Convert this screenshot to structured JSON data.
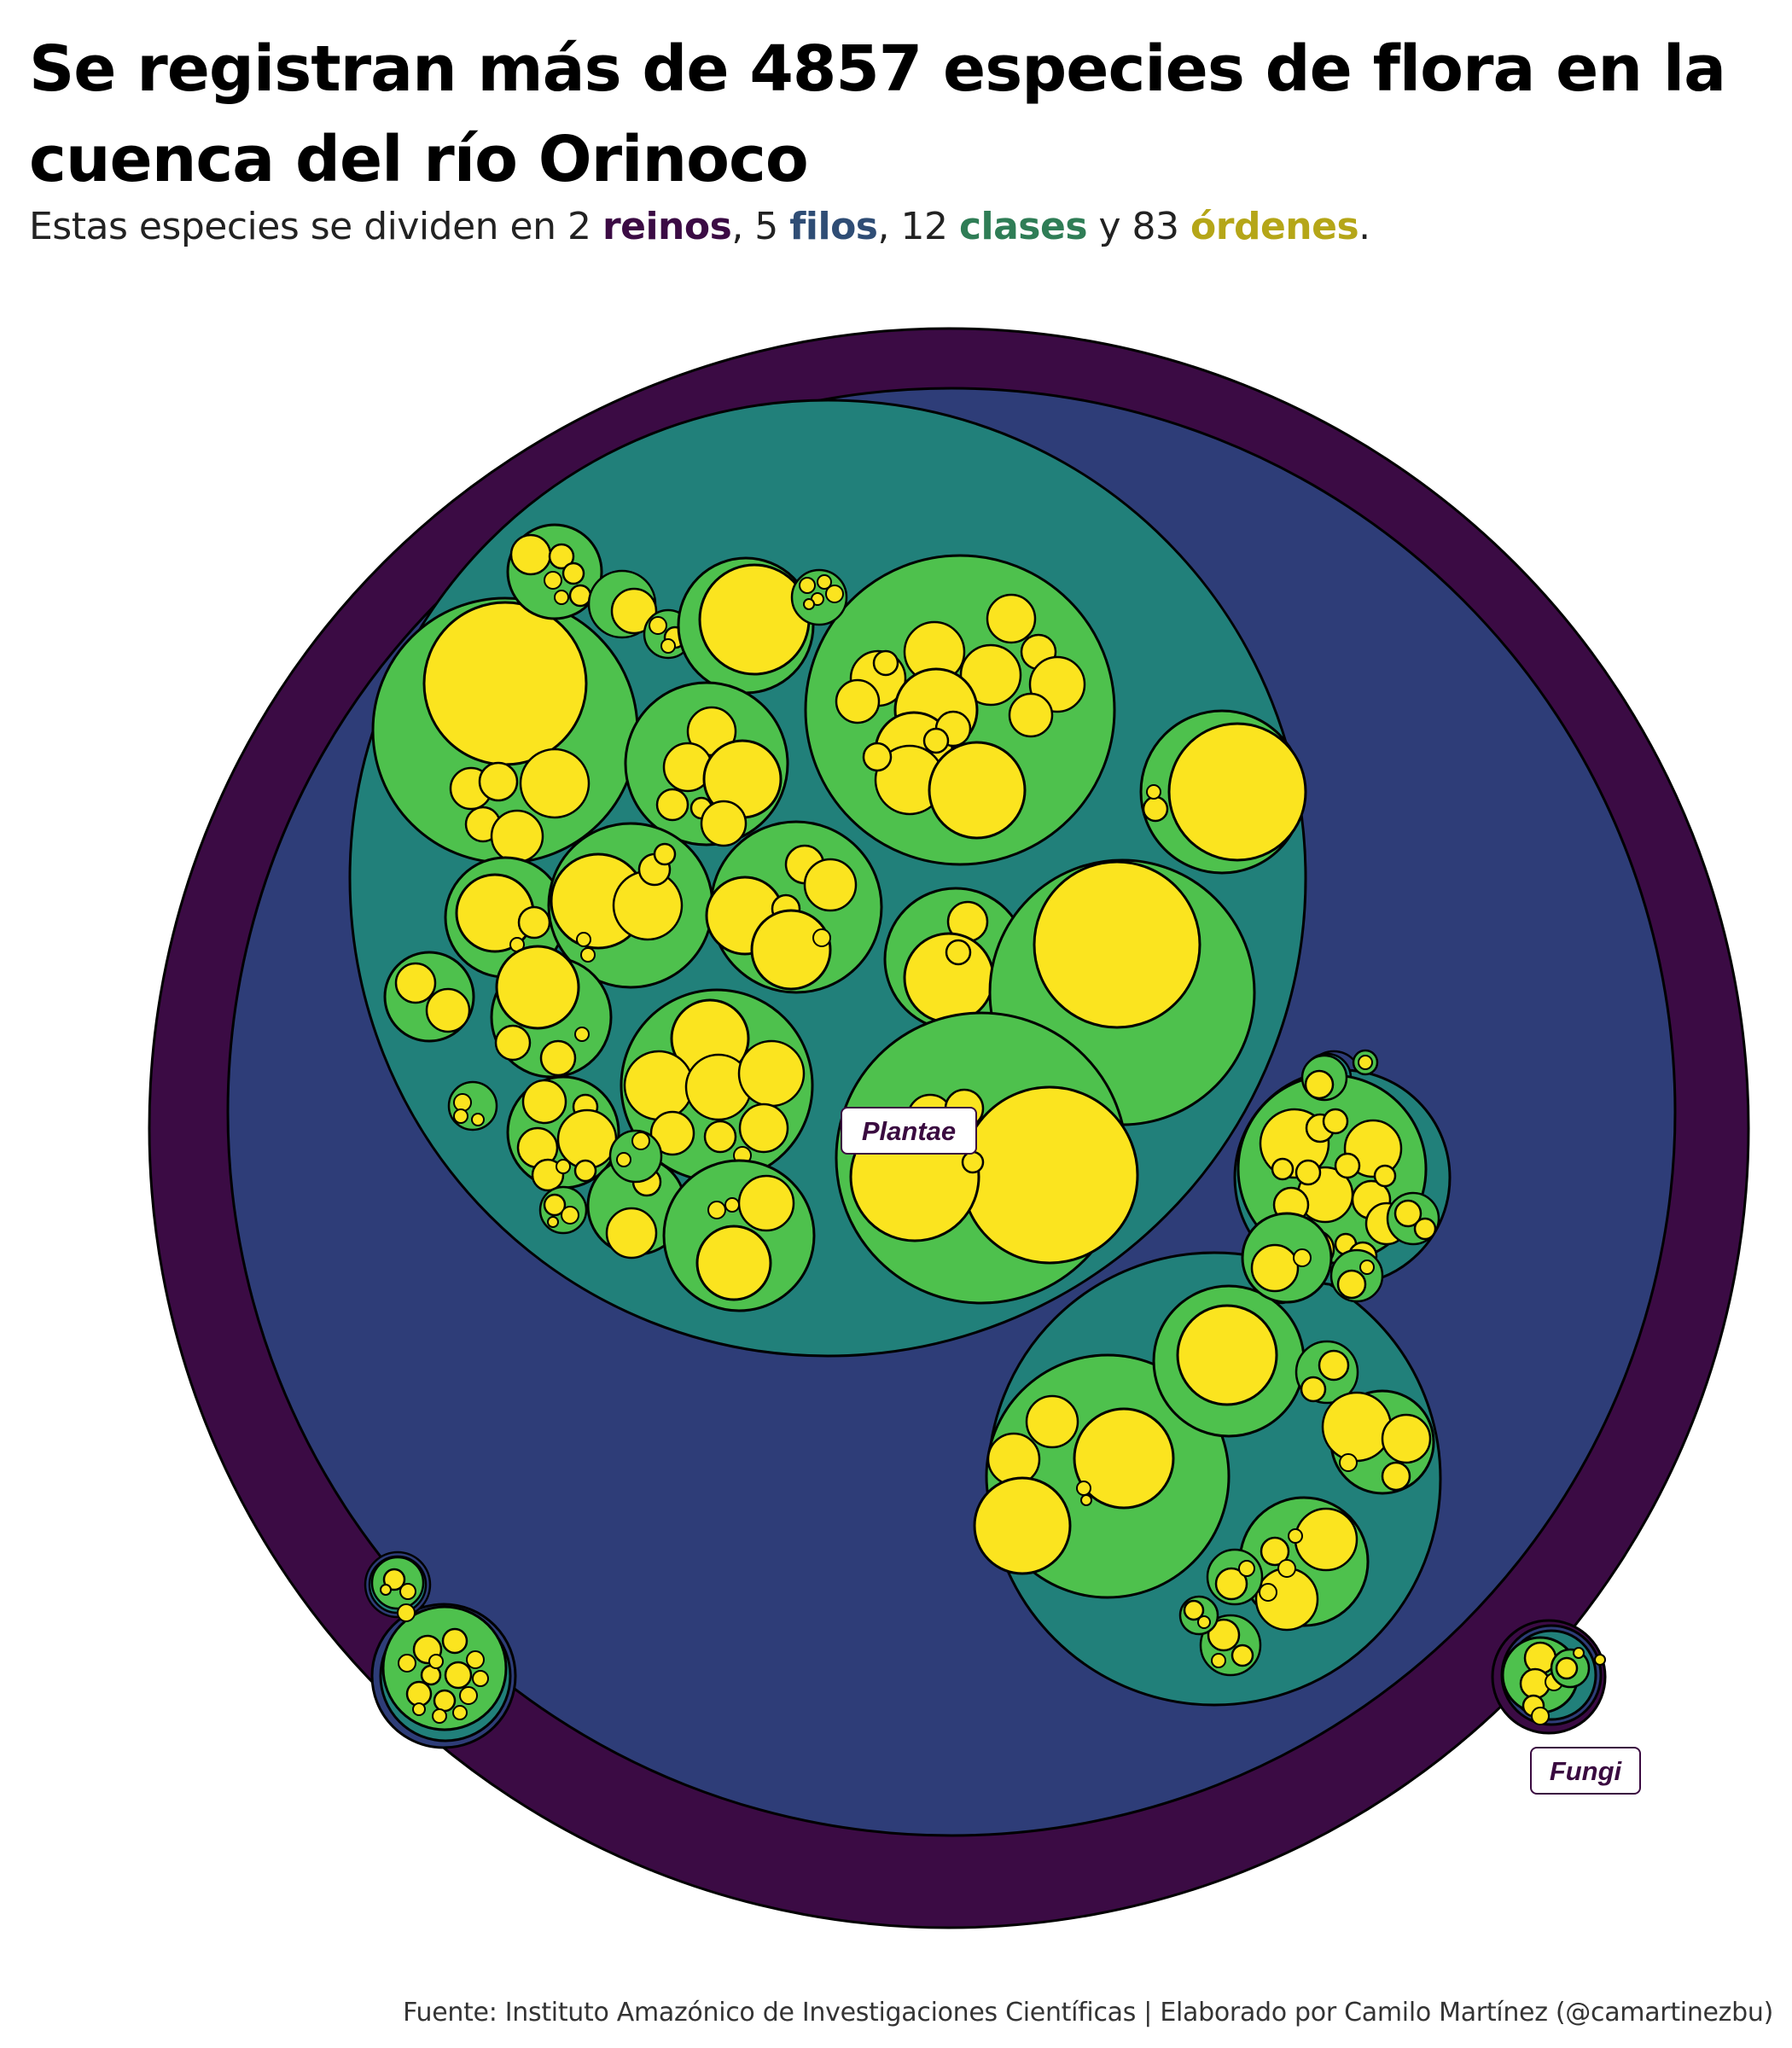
{
  "title": "Se registran más de 4857 especies de flora en la cuenca del río Orinoco",
  "subtitle": {
    "p1": "Estas especies se dividen en 2 ",
    "reinos": "reinos",
    "p2": ", 5 ",
    "filos": "filos",
    "p3": ", 12 ",
    "clases": "clases",
    "p4": " y 83 ",
    "ordenes": "órdenes",
    "p5": "."
  },
  "colors": {
    "reino": "#3b0b44",
    "filo": "#2e3d78",
    "clase": "#21807a",
    "orden": "#4ec14d",
    "hoja": "#fbe41f",
    "subtitle_reinos": "#3b0b44",
    "subtitle_filos": "#2f4d75",
    "subtitle_clases": "#2f7d56",
    "subtitle_ordenes": "#b5a618"
  },
  "caption": "Fuente: Instituto Amazónico de Investigaciones Científicas | Elaborado por Camilo Martínez (@camartinezbu)",
  "chart_data": {
    "type": "circle-packing",
    "hierarchy": [
      "reino",
      "filo",
      "clase",
      "orden",
      "especie"
    ],
    "total_species": 4857,
    "counts": {
      "reinos": 2,
      "filos": 5,
      "clases": 12,
      "ordenes": 83
    },
    "kingdom_labels": [
      "Plantae",
      "Fungi"
    ]
  }
}
